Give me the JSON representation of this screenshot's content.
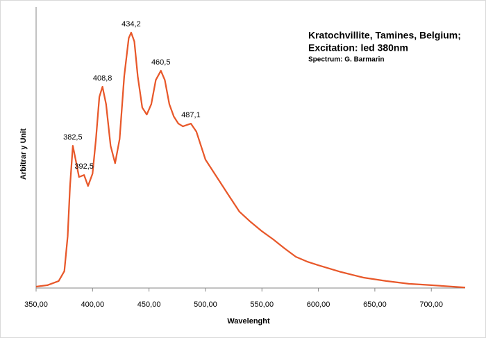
{
  "chart_data": {
    "type": "line",
    "title": [
      "Kratochvillite, Tamines, Belgium;",
      "Excitation: led 380nm"
    ],
    "subtitle": "Spectrum:  G. Barmarin",
    "xlabel": "Wavelenght",
    "ylabel": "Arbitrar y Unit",
    "xlim": [
      350,
      730
    ],
    "ylim": [
      0,
      100
    ],
    "xticks": [
      {
        "value": 350,
        "label": "350,00"
      },
      {
        "value": 400,
        "label": "400,00"
      },
      {
        "value": 450,
        "label": "450,00"
      },
      {
        "value": 500,
        "label": "500,00"
      },
      {
        "value": 550,
        "label": "550,00"
      },
      {
        "value": 600,
        "label": "600,00"
      },
      {
        "value": 650,
        "label": "650,00"
      },
      {
        "value": 700,
        "label": "700,00"
      }
    ],
    "color": "#e8582a",
    "x": [
      350,
      360,
      370,
      375,
      378,
      380,
      382.5,
      385,
      388,
      392.5,
      396,
      400,
      403,
      406,
      408.8,
      412,
      416,
      420,
      424,
      428,
      432,
      434.2,
      437,
      440,
      444,
      448,
      452,
      456,
      460.5,
      464,
      468,
      472,
      476,
      480,
      487.1,
      492,
      500,
      510,
      520,
      530,
      540,
      550,
      560,
      570,
      580,
      590,
      600,
      620,
      640,
      660,
      680,
      700,
      730
    ],
    "values": [
      0.5,
      1,
      2.5,
      6,
      18.5,
      36,
      50.6,
      45.7,
      39.5,
      40.2,
      36.3,
      40.7,
      53,
      68,
      71.6,
      65.4,
      50.6,
      44.4,
      53,
      75.3,
      88.9,
      90.9,
      87.7,
      75.3,
      64.2,
      61.7,
      65.4,
      74,
      77.3,
      74,
      65.4,
      61,
      58.5,
      57.5,
      58.5,
      55.6,
      45.7,
      39.5,
      33.3,
      27.2,
      23.5,
      20.2,
      17.3,
      14.1,
      11.1,
      9.4,
      8.1,
      5.7,
      3.7,
      2.5,
      1.5,
      1,
      0.2
    ],
    "annotations": [
      {
        "text": "382,5",
        "x": 382.5,
        "y": 50.6
      },
      {
        "text": "392,5",
        "x": 392.5,
        "y": 40.2
      },
      {
        "text": "408,8",
        "x": 408.8,
        "y": 71.6
      },
      {
        "text": "434,2",
        "x": 434.2,
        "y": 90.9
      },
      {
        "text": "460,5",
        "x": 460.5,
        "y": 77.3
      },
      {
        "text": "487,1",
        "x": 487.1,
        "y": 58.5
      }
    ]
  }
}
